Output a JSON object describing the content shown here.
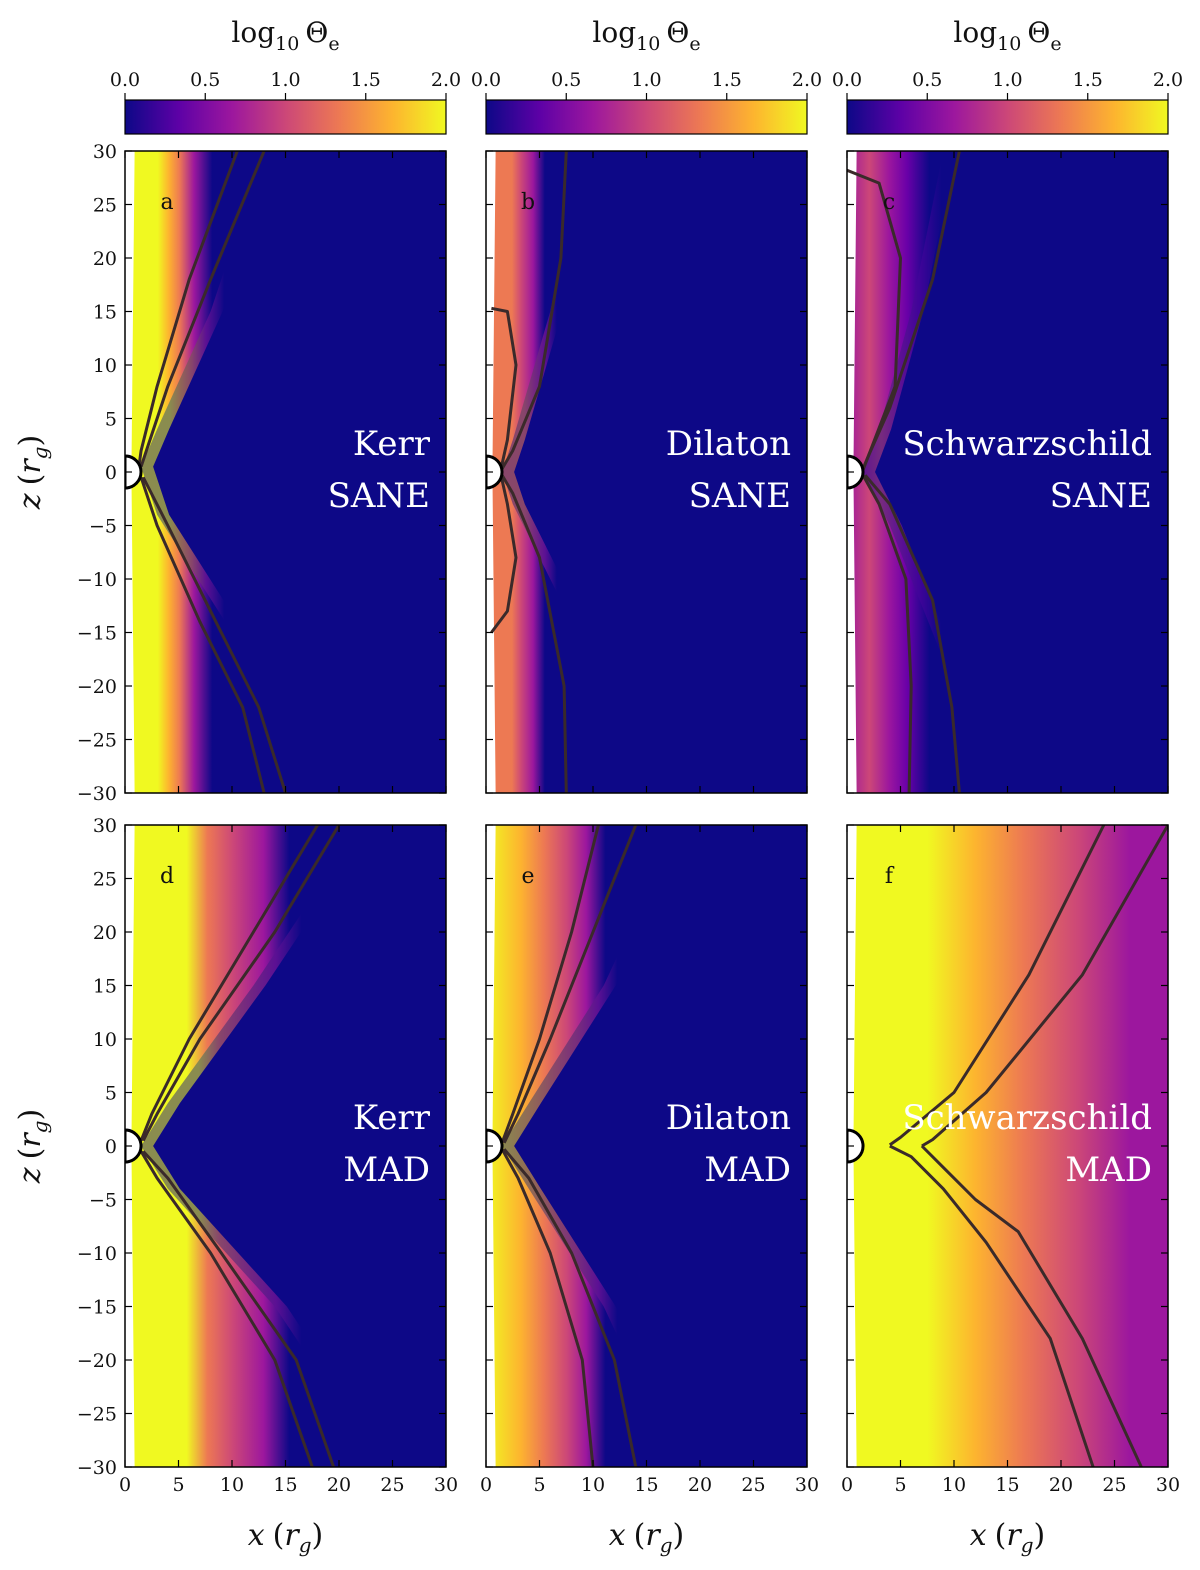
{
  "colorbar": {
    "label": "log10 Θe",
    "label_main": "log",
    "label_sub": "10",
    "label_symbol": "Θ",
    "label_symbol_sub": "e",
    "ticks": [
      "0.0",
      "0.5",
      "1.0",
      "1.5",
      "2.0"
    ],
    "range": [
      0.0,
      2.0
    ],
    "colormap": "plasma",
    "stops": [
      "#0d0887",
      "#5d01a6",
      "#9c179e",
      "#cc4778",
      "#ed7953",
      "#fdb42f",
      "#f0f921"
    ]
  },
  "axes": {
    "xlabel_var": "x",
    "xlabel_unit": "r",
    "xlabel_unit_sub": "g",
    "ylabel_var": "z",
    "ylabel_unit": "r",
    "ylabel_unit_sub": "g",
    "xticks": [
      "0",
      "5",
      "10",
      "15",
      "20",
      "25",
      "30"
    ],
    "yticks": [
      "30",
      "25",
      "20",
      "15",
      "10",
      "5",
      "0",
      "−5",
      "−10",
      "−15",
      "−20",
      "−25",
      "−30"
    ],
    "xlim": [
      0,
      30
    ],
    "ylim": [
      -30,
      30
    ]
  },
  "chart_data": [
    {
      "type": "heatmap",
      "panel": "a",
      "model": "Kerr",
      "mode": "SANE",
      "colorbar_range": [
        0,
        2
      ],
      "field_lines_x_at_z30": [
        10.5,
        12.8,
        13.0,
        15.0
      ]
    },
    {
      "type": "heatmap",
      "panel": "b",
      "model": "Dilaton",
      "mode": "SANE",
      "colorbar_range": [
        0,
        2
      ],
      "field_lines_x_at_z30": [
        7.5,
        7.5
      ]
    },
    {
      "type": "heatmap",
      "panel": "c",
      "model": "Schwarzschild",
      "mode": "SANE",
      "colorbar_range": [
        0,
        2
      ],
      "field_lines_x_at_z30": [
        10.5,
        5.8,
        10.5
      ]
    },
    {
      "type": "heatmap",
      "panel": "d",
      "model": "Kerr",
      "mode": "MAD",
      "colorbar_range": [
        0,
        2
      ],
      "field_lines_x_at_z30": [
        18.0,
        20.0,
        17.5,
        19.5
      ]
    },
    {
      "type": "heatmap",
      "panel": "e",
      "model": "Dilaton",
      "mode": "MAD",
      "colorbar_range": [
        0,
        2
      ],
      "field_lines_x_at_z30": [
        10.5,
        14.0,
        10.0,
        14.0
      ]
    },
    {
      "type": "heatmap",
      "panel": "f",
      "model": "Schwarzschild",
      "mode": "MAD",
      "colorbar_range": [
        0,
        2
      ],
      "field_lines_x_at_z30": [
        24.0,
        30.0,
        23.0,
        27.5
      ]
    }
  ],
  "panels": [
    {
      "letter": "a",
      "model": "Kerr",
      "mode": "SANE"
    },
    {
      "letter": "b",
      "model": "Dilaton",
      "mode": "SANE"
    },
    {
      "letter": "c",
      "model": "Schwarzschild",
      "mode": "SANE"
    },
    {
      "letter": "d",
      "model": "Kerr",
      "mode": "MAD"
    },
    {
      "letter": "e",
      "model": "Dilaton",
      "mode": "MAD"
    },
    {
      "letter": "f",
      "model": "Schwarzschild",
      "mode": "MAD"
    }
  ]
}
